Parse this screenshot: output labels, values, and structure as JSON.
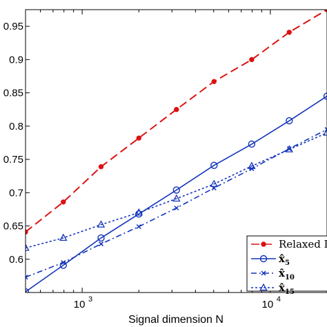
{
  "chart_data": {
    "type": "line",
    "xlabel": "Signal dimension N",
    "ylabel": "",
    "x_scale": "log",
    "xlim": [
      500,
      20000
    ],
    "ylim": [
      0.55,
      0.975
    ],
    "xticks": [
      {
        "value": 1000,
        "base": "10",
        "exp": "3"
      },
      {
        "value": 10000,
        "base": "10",
        "exp": "4"
      }
    ],
    "yticks": [
      {
        "value": 0.6,
        "label": "0.6"
      },
      {
        "value": 0.65,
        "label": "0.65"
      },
      {
        "value": 0.7,
        "label": "0.7"
      },
      {
        "value": 0.75,
        "label": "0.75"
      },
      {
        "value": 0.8,
        "label": "0.8"
      },
      {
        "value": 0.85,
        "label": "0.85"
      },
      {
        "value": 0.9,
        "label": "0.9"
      },
      {
        "value": 0.95,
        "label": "0.95"
      }
    ],
    "grid": false,
    "legend_position": "lower-right",
    "series": [
      {
        "name": "Relaxed I",
        "color": "#dd1111",
        "dash": "12,6",
        "marker": "dot",
        "x": [
          500,
          794,
          1260,
          2000,
          3170,
          5020,
          7960,
          12600,
          20000
        ],
        "y": [
          0.641,
          0.686,
          0.739,
          0.782,
          0.825,
          0.867,
          0.9,
          0.941,
          0.975
        ]
      },
      {
        "name": "x̂",
        "sub": "5",
        "color": "#1133bb",
        "dash": "",
        "marker": "circle",
        "x": [
          500,
          794,
          1260,
          2000,
          3170,
          5020,
          7960,
          12600,
          20000
        ],
        "y": [
          0.551,
          0.591,
          0.632,
          0.668,
          0.704,
          0.741,
          0.773,
          0.808,
          0.845
        ]
      },
      {
        "name": "x̂",
        "sub": "10",
        "color": "#1133bb",
        "dash": "8,4,2,4",
        "marker": "x",
        "x": [
          500,
          794,
          1260,
          2000,
          3170,
          5020,
          7960,
          12600,
          20000
        ],
        "y": [
          0.573,
          0.595,
          0.623,
          0.649,
          0.677,
          0.707,
          0.736,
          0.766,
          0.795
        ]
      },
      {
        "name": "x̂",
        "sub": "15",
        "color": "#1133bb",
        "dash": "3,3",
        "marker": "triangle",
        "x": [
          500,
          794,
          1260,
          2000,
          3170,
          5020,
          7960,
          12600,
          20000
        ],
        "y": [
          0.617,
          0.632,
          0.652,
          0.67,
          0.691,
          0.713,
          0.74,
          0.765,
          0.79
        ]
      }
    ]
  }
}
